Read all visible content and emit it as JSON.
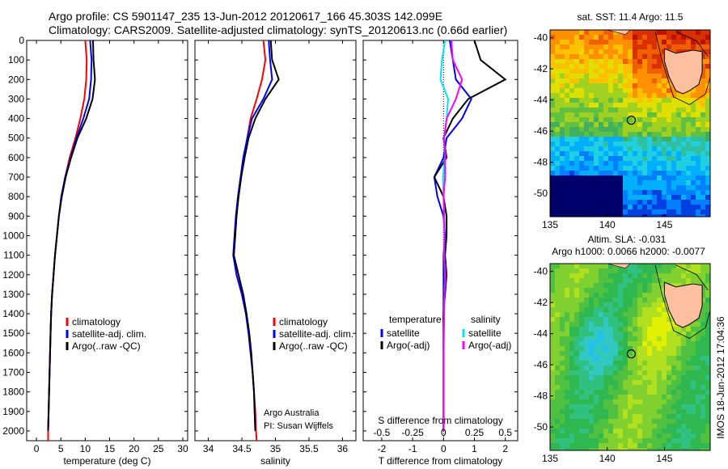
{
  "header": {
    "line1": "Argo profile: CS 5901147_235 13-Jun-2012 20120617_166 45.303S 142.099E",
    "line2": "Climatology: CARS2009. Satellite-adjusted climatology: synTS_20120613.nc (0.66d earlier)"
  },
  "side_label": "IMOS 18-Jun-2012 17:04:36",
  "colors": {
    "clim": "#ff0000",
    "sat": "#0000ff",
    "argo": "#000000",
    "sat_s": "#00e5ff",
    "argo_s": "#ff00ff"
  },
  "chart_data": [
    {
      "type": "line",
      "name": "temperature",
      "xlabel": "temperature (deg C)",
      "xlim": [
        -2,
        31
      ],
      "xticks": [
        0,
        5,
        10,
        15,
        20,
        25,
        30
      ],
      "ylim": [
        0,
        2050
      ],
      "yticks": [
        0,
        100,
        200,
        300,
        400,
        500,
        600,
        700,
        800,
        900,
        1000,
        1100,
        1200,
        1300,
        1400,
        1500,
        1600,
        1700,
        1800,
        1900,
        2000
      ],
      "series": [
        {
          "name": "climatology",
          "color": "#ff0000",
          "x": [
            10.0,
            10.3,
            10.2,
            9.8,
            9.0,
            8.0,
            6.8,
            5.9,
            5.1,
            4.6,
            4.2,
            3.8,
            3.5,
            3.2,
            3.0,
            2.9,
            2.8,
            2.7,
            2.6,
            2.5,
            2.4,
            2.4
          ],
          "y": [
            0,
            100,
            200,
            300,
            400,
            500,
            600,
            700,
            800,
            900,
            1000,
            1100,
            1200,
            1300,
            1400,
            1500,
            1600,
            1700,
            1800,
            1900,
            2000,
            2050
          ]
        },
        {
          "name": "satellite-adj. clim.",
          "color": "#0000ff",
          "x": [
            11.0,
            11.3,
            11.2,
            10.8,
            9.6,
            8.2,
            7.0,
            5.9,
            5.1,
            4.6,
            4.2,
            3.8,
            3.5,
            3.2,
            3.0,
            2.9,
            2.8,
            2.7,
            2.6,
            2.5,
            2.4
          ],
          "y": [
            0,
            100,
            200,
            300,
            400,
            500,
            600,
            700,
            800,
            900,
            1000,
            1100,
            1200,
            1300,
            1400,
            1500,
            1600,
            1700,
            1800,
            1900,
            2000
          ]
        },
        {
          "name": "Argo(..raw -QC)",
          "color": "#000000",
          "x": [
            11.6,
            11.7,
            12.0,
            11.5,
            10.2,
            8.4,
            7.1,
            6.0,
            5.2,
            4.6,
            4.2,
            3.8,
            3.5,
            3.2,
            3.0,
            2.9,
            2.8,
            2.7,
            2.6,
            2.5,
            2.4
          ],
          "y": [
            0,
            100,
            200,
            300,
            400,
            500,
            600,
            700,
            800,
            900,
            1000,
            1100,
            1200,
            1300,
            1400,
            1500,
            1600,
            1700,
            1800,
            1900,
            2000
          ]
        }
      ],
      "legend": [
        "climatology",
        "satellite-adj. clim.",
        "Argo(..raw -QC)"
      ]
    },
    {
      "type": "line",
      "name": "salinity",
      "xlabel": "salinity",
      "xlim": [
        33.8,
        36.2
      ],
      "xticks": [
        34,
        34.5,
        35,
        35.5,
        36
      ],
      "ylim": [
        0,
        2050
      ],
      "series": [
        {
          "name": "climatology",
          "color": "#ff0000",
          "x": [
            34.82,
            34.85,
            34.8,
            34.72,
            34.63,
            34.58,
            34.53,
            34.49,
            34.45,
            34.42,
            34.4,
            34.38,
            34.42,
            34.5,
            34.56,
            34.6,
            34.63,
            34.66,
            34.68,
            34.7,
            34.71,
            34.72
          ],
          "y": [
            0,
            100,
            200,
            300,
            400,
            500,
            600,
            700,
            800,
            900,
            1000,
            1100,
            1200,
            1300,
            1400,
            1500,
            1600,
            1700,
            1800,
            1900,
            2000,
            2050
          ]
        },
        {
          "name": "satellite-adj. clim.",
          "color": "#0000ff",
          "x": [
            34.9,
            34.92,
            34.95,
            34.82,
            34.65,
            34.58,
            34.52,
            34.48,
            34.44,
            34.41,
            34.39,
            34.37,
            34.42,
            34.5,
            34.56,
            34.6,
            34.63,
            34.66,
            34.68,
            34.69,
            34.7
          ],
          "y": [
            0,
            100,
            200,
            300,
            400,
            500,
            600,
            700,
            800,
            900,
            1000,
            1100,
            1200,
            1300,
            1400,
            1500,
            1600,
            1700,
            1800,
            1900,
            2000
          ]
        },
        {
          "name": "Argo(..raw -QC)",
          "color": "#000000",
          "x": [
            34.93,
            34.95,
            35.05,
            34.85,
            34.7,
            34.6,
            34.54,
            34.49,
            34.45,
            34.42,
            34.4,
            34.38,
            34.45,
            34.52,
            34.57,
            34.61,
            34.64,
            34.66,
            34.68,
            34.69,
            34.7
          ],
          "y": [
            0,
            100,
            200,
            300,
            400,
            500,
            600,
            700,
            800,
            900,
            1000,
            1100,
            1200,
            1300,
            1400,
            1500,
            1600,
            1700,
            1800,
            1900,
            2000
          ]
        }
      ],
      "legend": [
        "climatology",
        "satellite-adj. clim.",
        "Argo(..raw -QC)"
      ],
      "annotation": [
        "Argo Australia",
        "PI: Susan Wijffels"
      ]
    },
    {
      "type": "line",
      "name": "difference",
      "xlabel": "T difference from climatology",
      "xlabel_top": "S difference from climatology",
      "xlim": [
        -2.6,
        2.4
      ],
      "xticks": [
        -2,
        -1,
        0,
        1,
        2
      ],
      "xticks_top_labels": [
        "-0.5",
        "-0.25",
        "0",
        "0.25",
        "0.5"
      ],
      "ylim": [
        0,
        2050
      ],
      "series": [
        {
          "name": "temperature satellite",
          "color": "#0000ff",
          "x": [
            0.2,
            0.3,
            0.4,
            0.9,
            0.6,
            0.1,
            0.0,
            -0.3,
            -0.2,
            0.0,
            0.05,
            0.0,
            0.0,
            0.0,
            0.0,
            0.0,
            0.0,
            0.0,
            0.0,
            0.0
          ],
          "y": [
            0,
            100,
            200,
            300,
            400,
            500,
            600,
            700,
            800,
            900,
            1000,
            1100,
            1200,
            1300,
            1400,
            1500,
            1600,
            1700,
            1800,
            2000
          ]
        },
        {
          "name": "temperature Argo(-adj)",
          "color": "#000000",
          "x": [
            1.0,
            1.2,
            2.0,
            0.8,
            0.3,
            0.0,
            0.1,
            -0.3,
            0.0,
            0.1,
            0.1,
            0.05,
            0.1,
            0.05,
            0.0,
            0.0,
            0.0,
            0.0,
            0.0,
            0.0
          ],
          "y": [
            0,
            100,
            200,
            300,
            400,
            500,
            600,
            700,
            800,
            900,
            1000,
            1100,
            1200,
            1300,
            1400,
            1500,
            1600,
            1700,
            1800,
            2000
          ]
        },
        {
          "name": "salinity satellite",
          "color": "#00e5ff",
          "x": [
            0.05,
            -0.05,
            -0.1,
            0.15,
            0.1,
            0.02,
            0.05,
            -0.02,
            0.0,
            0.02,
            0.03,
            0.02,
            0.05,
            0.03,
            0.02,
            0.01,
            0.0,
            0.0,
            0.0,
            0.0
          ],
          "y": [
            0,
            100,
            200,
            300,
            400,
            500,
            600,
            700,
            800,
            900,
            1000,
            1100,
            1200,
            1300,
            1400,
            1500,
            1600,
            1700,
            1800,
            2000
          ]
        },
        {
          "name": "salinity Argo(-adj)",
          "color": "#ff00ff",
          "x": [
            0.25,
            0.3,
            0.6,
            0.4,
            0.1,
            0.02,
            0.05,
            0.05,
            0.0,
            0.02,
            0.03,
            0.02,
            0.05,
            0.03,
            0.02,
            0.01,
            0.0,
            0.0,
            0.0,
            0.0
          ],
          "y": [
            0,
            100,
            200,
            300,
            400,
            500,
            600,
            700,
            800,
            900,
            1000,
            1100,
            1200,
            1300,
            1400,
            1500,
            1600,
            1700,
            1800,
            2000
          ]
        }
      ],
      "legend_titles": [
        "temperature",
        "salinity"
      ],
      "legend": [
        "satellite",
        "Argo(-adj)",
        "satellite",
        "Argo(-adj)"
      ]
    },
    {
      "type": "heatmap",
      "name": "sst-map",
      "title": "sat. SST: 11.4  Argo: 11.5",
      "xticks": [
        135,
        140,
        145
      ],
      "yticks": [
        -40,
        -42,
        -44,
        -46,
        -48,
        -50
      ],
      "xlim": [
        135,
        149
      ],
      "ylim": [
        -51.5,
        -39.5
      ],
      "argo_position": [
        142.1,
        -45.3
      ]
    },
    {
      "type": "heatmap",
      "name": "sla-map",
      "title_line1": "Altim. SLA: -0.031",
      "title_line2": "Argo h1000: 0.0066 h2000: -0.0077",
      "xticks": [
        135,
        140,
        145
      ],
      "yticks": [
        -40,
        -42,
        -44,
        -46,
        -48,
        -50
      ],
      "xlim": [
        135,
        149
      ],
      "ylim": [
        -51.5,
        -39.5
      ],
      "argo_position": [
        142.1,
        -45.3
      ]
    }
  ]
}
